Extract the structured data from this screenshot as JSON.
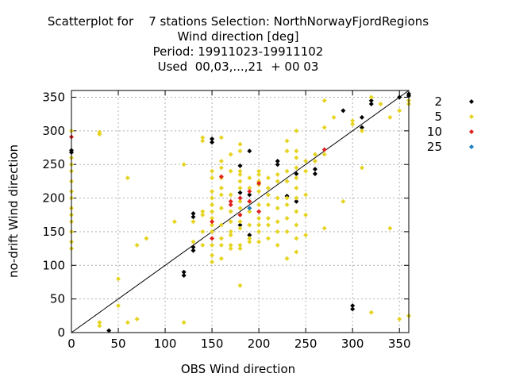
{
  "chart_data": {
    "type": "scatter",
    "title_lines": [
      "Scatterplot for    7 stations Selection: NorthNorwayFjordRegions",
      "Wind direction [deg]",
      "Period: 19911023-19911102",
      "Used  00,03,...,21  + 00 03"
    ],
    "xlabel": "OBS Wind direction",
    "ylabel": "no-drift Wind direction",
    "xlim": [
      0,
      360
    ],
    "ylim": [
      0,
      360
    ],
    "xticks": [
      0,
      50,
      100,
      150,
      200,
      250,
      300,
      350
    ],
    "yticks": [
      0,
      50,
      100,
      150,
      200,
      250,
      300,
      350
    ],
    "grid": true,
    "legend_placement": "right",
    "diagonal": [
      [
        0,
        0
      ],
      [
        360,
        360
      ]
    ],
    "series": [
      {
        "name": "2",
        "color": "#000000",
        "points": [
          [
            0,
            268
          ],
          [
            0,
            271
          ],
          [
            40,
            3
          ],
          [
            120,
            85
          ],
          [
            120,
            90
          ],
          [
            130,
            122
          ],
          [
            130,
            127
          ],
          [
            130,
            172
          ],
          [
            130,
            177
          ],
          [
            150,
            283
          ],
          [
            150,
            288
          ],
          [
            180,
            160
          ],
          [
            180,
            208
          ],
          [
            180,
            248
          ],
          [
            190,
            205
          ],
          [
            190,
            270
          ],
          [
            190,
            145
          ],
          [
            220,
            250
          ],
          [
            220,
            255
          ],
          [
            230,
            203
          ],
          [
            240,
            236
          ],
          [
            240,
            195
          ],
          [
            260,
            236
          ],
          [
            260,
            243
          ],
          [
            290,
            330
          ],
          [
            300,
            35
          ],
          [
            300,
            40
          ],
          [
            310,
            305
          ],
          [
            310,
            320
          ],
          [
            320,
            340
          ],
          [
            320,
            345
          ],
          [
            350,
            350
          ],
          [
            360,
            355
          ],
          [
            360,
            352
          ]
        ]
      },
      {
        "name": "5",
        "color": "#e6d422",
        "points": [
          [
            0,
            300
          ],
          [
            0,
            260
          ],
          [
            0,
            250
          ],
          [
            0,
            240
          ],
          [
            0,
            225
          ],
          [
            0,
            210
          ],
          [
            0,
            200
          ],
          [
            0,
            185
          ],
          [
            0,
            175
          ],
          [
            0,
            165
          ],
          [
            0,
            150
          ],
          [
            0,
            135
          ],
          [
            0,
            125
          ],
          [
            30,
            295
          ],
          [
            30,
            298
          ],
          [
            30,
            15
          ],
          [
            30,
            10
          ],
          [
            50,
            80
          ],
          [
            50,
            40
          ],
          [
            60,
            230
          ],
          [
            60,
            15
          ],
          [
            70,
            20
          ],
          [
            70,
            130
          ],
          [
            80,
            140
          ],
          [
            110,
            165
          ],
          [
            120,
            250
          ],
          [
            120,
            15
          ],
          [
            130,
            165
          ],
          [
            130,
            135
          ],
          [
            140,
            285
          ],
          [
            140,
            290
          ],
          [
            140,
            180
          ],
          [
            140,
            175
          ],
          [
            140,
            150
          ],
          [
            140,
            130
          ],
          [
            150,
            240
          ],
          [
            150,
            230
          ],
          [
            150,
            210
          ],
          [
            150,
            200
          ],
          [
            150,
            190
          ],
          [
            150,
            180
          ],
          [
            150,
            170
          ],
          [
            150,
            160
          ],
          [
            150,
            150
          ],
          [
            150,
            140
          ],
          [
            150,
            130
          ],
          [
            150,
            115
          ],
          [
            150,
            105
          ],
          [
            160,
            290
          ],
          [
            160,
            255
          ],
          [
            160,
            245
          ],
          [
            160,
            230
          ],
          [
            160,
            215
          ],
          [
            160,
            205
          ],
          [
            160,
            185
          ],
          [
            160,
            160
          ],
          [
            160,
            140
          ],
          [
            160,
            130
          ],
          [
            160,
            110
          ],
          [
            170,
            265
          ],
          [
            170,
            240
          ],
          [
            170,
            205
          ],
          [
            170,
            180
          ],
          [
            170,
            165
          ],
          [
            170,
            150
          ],
          [
            170,
            145
          ],
          [
            170,
            130
          ],
          [
            170,
            125
          ],
          [
            180,
            280
          ],
          [
            180,
            270
          ],
          [
            180,
            240
          ],
          [
            180,
            235
          ],
          [
            180,
            225
          ],
          [
            180,
            215
          ],
          [
            180,
            195
          ],
          [
            180,
            185
          ],
          [
            180,
            175
          ],
          [
            180,
            165
          ],
          [
            180,
            155
          ],
          [
            180,
            130
          ],
          [
            180,
            125
          ],
          [
            180,
            70
          ],
          [
            190,
            230
          ],
          [
            190,
            215
          ],
          [
            190,
            195
          ],
          [
            190,
            180
          ],
          [
            190,
            160
          ],
          [
            190,
            140
          ],
          [
            190,
            135
          ],
          [
            200,
            240
          ],
          [
            200,
            235
          ],
          [
            200,
            225
          ],
          [
            200,
            220
          ],
          [
            200,
            210
          ],
          [
            200,
            190
          ],
          [
            200,
            170
          ],
          [
            200,
            160
          ],
          [
            200,
            150
          ],
          [
            200,
            135
          ],
          [
            210,
            230
          ],
          [
            210,
            215
          ],
          [
            210,
            205
          ],
          [
            210,
            190
          ],
          [
            210,
            170
          ],
          [
            210,
            160
          ],
          [
            210,
            140
          ],
          [
            220,
            235
          ],
          [
            220,
            225
          ],
          [
            220,
            200
          ],
          [
            220,
            185
          ],
          [
            220,
            165
          ],
          [
            220,
            150
          ],
          [
            220,
            130
          ],
          [
            230,
            285
          ],
          [
            230,
            270
          ],
          [
            230,
            240
          ],
          [
            230,
            225
          ],
          [
            230,
            200
          ],
          [
            230,
            190
          ],
          [
            230,
            170
          ],
          [
            230,
            150
          ],
          [
            230,
            110
          ],
          [
            240,
            300
          ],
          [
            240,
            270
          ],
          [
            240,
            260
          ],
          [
            240,
            245
          ],
          [
            240,
            230
          ],
          [
            240,
            215
          ],
          [
            240,
            200
          ],
          [
            240,
            180
          ],
          [
            240,
            160
          ],
          [
            240,
            140
          ],
          [
            240,
            120
          ],
          [
            250,
            255
          ],
          [
            250,
            240
          ],
          [
            250,
            205
          ],
          [
            250,
            175
          ],
          [
            250,
            145
          ],
          [
            260,
            265
          ],
          [
            260,
            255
          ],
          [
            270,
            345
          ],
          [
            270,
            305
          ],
          [
            270,
            265
          ],
          [
            270,
            155
          ],
          [
            280,
            320
          ],
          [
            290,
            195
          ],
          [
            300,
            310
          ],
          [
            300,
            315
          ],
          [
            310,
            300
          ],
          [
            310,
            245
          ],
          [
            320,
            350
          ],
          [
            320,
            30
          ],
          [
            330,
            340
          ],
          [
            340,
            320
          ],
          [
            340,
            155
          ],
          [
            350,
            330
          ],
          [
            350,
            20
          ],
          [
            360,
            345
          ],
          [
            360,
            340
          ],
          [
            360,
            25
          ]
        ]
      },
      {
        "name": "10",
        "color": "#e02020",
        "points": [
          [
            0,
            291
          ],
          [
            150,
            140
          ],
          [
            150,
            165
          ],
          [
            160,
            232
          ],
          [
            170,
            195
          ],
          [
            170,
            190
          ],
          [
            180,
            175
          ],
          [
            180,
            200
          ],
          [
            190,
            195
          ],
          [
            190,
            210
          ],
          [
            200,
            222
          ],
          [
            200,
            180
          ],
          [
            270,
            272
          ]
        ]
      },
      {
        "name": "25",
        "color": "#1a7fc0",
        "points": [
          [
            190,
            185
          ]
        ]
      }
    ]
  }
}
